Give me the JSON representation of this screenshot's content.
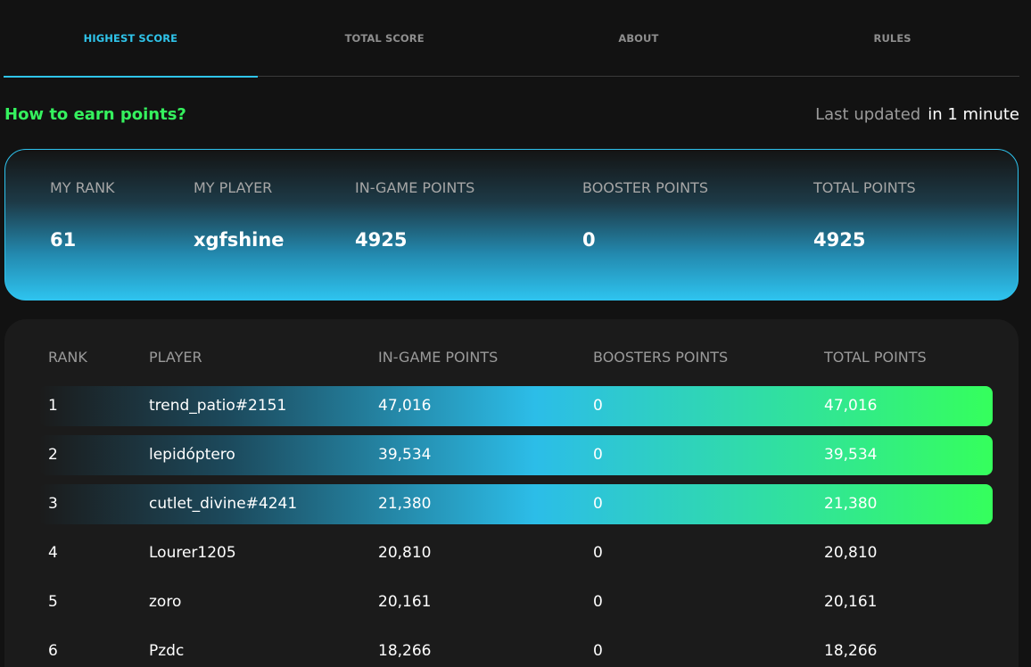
{
  "tabs": [
    {
      "label": "HIGHEST SCORE",
      "active": true
    },
    {
      "label": "TOTAL SCORE",
      "active": false
    },
    {
      "label": "ABOUT",
      "active": false
    },
    {
      "label": "RULES",
      "active": false
    }
  ],
  "info": {
    "earn_link": "How to earn points?",
    "updated_label": "Last updated",
    "updated_value": "in 1 minute"
  },
  "my_card": {
    "labels": {
      "rank": "MY RANK",
      "player": "MY PLAYER",
      "in_game": "IN-GAME POINTS",
      "booster": "BOOSTER POINTS",
      "total": "TOTAL POINTS"
    },
    "values": {
      "rank": "61",
      "player": "xgfshine",
      "in_game": "4925",
      "booster": "0",
      "total": "4925"
    }
  },
  "board": {
    "headers": {
      "rank": "RANK",
      "player": "PLAYER",
      "in_game": "IN-GAME POINTS",
      "boosters": "BOOSTERS POINTS",
      "total": "TOTAL POINTS"
    },
    "rows": [
      {
        "rank": "1",
        "player": "trend_patio#2151",
        "in_game": "47,016",
        "boosters": "0",
        "total": "47,016"
      },
      {
        "rank": "2",
        "player": "lepidóptero",
        "in_game": "39,534",
        "boosters": "0",
        "total": "39,534"
      },
      {
        "rank": "3",
        "player": "cutlet_divine#4241",
        "in_game": "21,380",
        "boosters": "0",
        "total": "21,380"
      },
      {
        "rank": "4",
        "player": "Lourer1205",
        "in_game": "20,810",
        "boosters": "0",
        "total": "20,810"
      },
      {
        "rank": "5",
        "player": "zoro",
        "in_game": "20,161",
        "boosters": "0",
        "total": "20,161"
      },
      {
        "rank": "6",
        "player": "Pzdc",
        "in_game": "18,266",
        "boosters": "0",
        "total": "18,266"
      }
    ]
  },
  "colors": {
    "accent_cyan": "#2fc4ea",
    "accent_green": "#35f25e",
    "background": "#121212"
  }
}
